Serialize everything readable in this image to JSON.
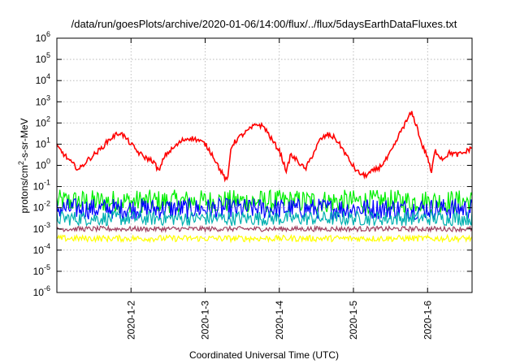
{
  "chart_data": {
    "type": "line",
    "title": "/data/run/goesPlots/archive/2020-01-06/14:00/flux/../flux/5daysEarthDataFluxes.txt",
    "xlabel": "Coordinated Universal Time (UTC)",
    "ylabel_parts": {
      "base": "protons/cm",
      "exp": "2",
      "rest": "-s-sr-MeV"
    },
    "yscale": "log",
    "ylim": [
      1e-06,
      1000000.0
    ],
    "xlim_days": [
      0,
      5.6
    ],
    "x_ticks": [
      {
        "label": "2020-1-2",
        "day": 1
      },
      {
        "label": "2020-1-3",
        "day": 2
      },
      {
        "label": "2020-1-4",
        "day": 3
      },
      {
        "label": "2020-1-5",
        "day": 4
      },
      {
        "label": "2020-1-6",
        "day": 5
      }
    ],
    "y_ticks": [
      {
        "base": "10",
        "exp": "-6",
        "value": -6
      },
      {
        "base": "10",
        "exp": "-5",
        "value": -5
      },
      {
        "base": "10",
        "exp": "-4",
        "value": -4
      },
      {
        "base": "10",
        "exp": "-3",
        "value": -3
      },
      {
        "base": "10",
        "exp": "-2",
        "value": -2
      },
      {
        "base": "10",
        "exp": "-1",
        "value": -1
      },
      {
        "base": "10",
        "exp": "0",
        "value": 0
      },
      {
        "base": "10",
        "exp": "1",
        "value": 1
      },
      {
        "base": "10",
        "exp": "2",
        "value": 2
      },
      {
        "base": "10",
        "exp": "3",
        "value": 3
      },
      {
        "base": "10",
        "exp": "4",
        "value": 4
      },
      {
        "base": "10",
        "exp": "5",
        "value": 5
      },
      {
        "base": "10",
        "exp": "6",
        "value": 6
      }
    ],
    "grid": true,
    "series": [
      {
        "color": "#00ee00",
        "log10_mean": -1.7,
        "log10_jitter": 0.55
      },
      {
        "color": "#0000ff",
        "log10_mean": -2.05,
        "log10_jitter": 0.5
      },
      {
        "color": "#00b0b0",
        "log10_mean": -2.5,
        "log10_jitter": 0.35
      },
      {
        "color": "#a04060",
        "log10_mean": -3.0,
        "log10_jitter": 0.12
      },
      {
        "color": "#ffff00",
        "log10_mean": -3.45,
        "log10_jitter": 0.15
      },
      {
        "color": "#ff0000",
        "points": [
          [
            0.0,
            0.9
          ],
          [
            0.1,
            0.5
          ],
          [
            0.2,
            0.1
          ],
          [
            0.3,
            -0.2
          ],
          [
            0.4,
            0.2
          ],
          [
            0.5,
            0.5
          ],
          [
            0.6,
            0.8
          ],
          [
            0.7,
            1.2
          ],
          [
            0.8,
            1.45
          ],
          [
            0.85,
            1.55
          ],
          [
            0.9,
            1.4
          ],
          [
            1.0,
            1.0
          ],
          [
            1.1,
            0.6
          ],
          [
            1.2,
            0.35
          ],
          [
            1.3,
            0.2
          ],
          [
            1.38,
            -0.3
          ],
          [
            1.45,
            0.45
          ],
          [
            1.6,
            0.9
          ],
          [
            1.7,
            1.2
          ],
          [
            1.8,
            1.3
          ],
          [
            1.9,
            1.2
          ],
          [
            2.0,
            1.0
          ],
          [
            2.1,
            0.5
          ],
          [
            2.2,
            -0.2
          ],
          [
            2.3,
            -0.8
          ],
          [
            2.35,
            0.9
          ],
          [
            2.45,
            1.3
          ],
          [
            2.6,
            1.7
          ],
          [
            2.7,
            1.95
          ],
          [
            2.8,
            1.8
          ],
          [
            2.9,
            1.2
          ],
          [
            3.0,
            0.7
          ],
          [
            3.1,
            -0.3
          ],
          [
            3.15,
            0.5
          ],
          [
            3.25,
            0.2
          ],
          [
            3.35,
            -0.2
          ],
          [
            3.45,
            0.5
          ],
          [
            3.55,
            1.2
          ],
          [
            3.65,
            1.45
          ],
          [
            3.75,
            1.3
          ],
          [
            3.85,
            0.8
          ],
          [
            3.95,
            0.2
          ],
          [
            4.05,
            -0.3
          ],
          [
            4.15,
            -0.5
          ],
          [
            4.25,
            -0.3
          ],
          [
            4.35,
            -0.1
          ],
          [
            4.45,
            0.3
          ],
          [
            4.55,
            0.9
          ],
          [
            4.65,
            1.7
          ],
          [
            4.72,
            2.1
          ],
          [
            4.78,
            2.5
          ],
          [
            4.85,
            1.9
          ],
          [
            4.92,
            1.0
          ],
          [
            5.0,
            0.4
          ],
          [
            5.05,
            -0.4
          ],
          [
            5.1,
            0.7
          ],
          [
            5.2,
            0.3
          ],
          [
            5.3,
            0.6
          ],
          [
            5.4,
            0.5
          ],
          [
            5.5,
            0.6
          ],
          [
            5.6,
            0.85
          ]
        ],
        "log10_jitter": 0.12
      }
    ]
  }
}
